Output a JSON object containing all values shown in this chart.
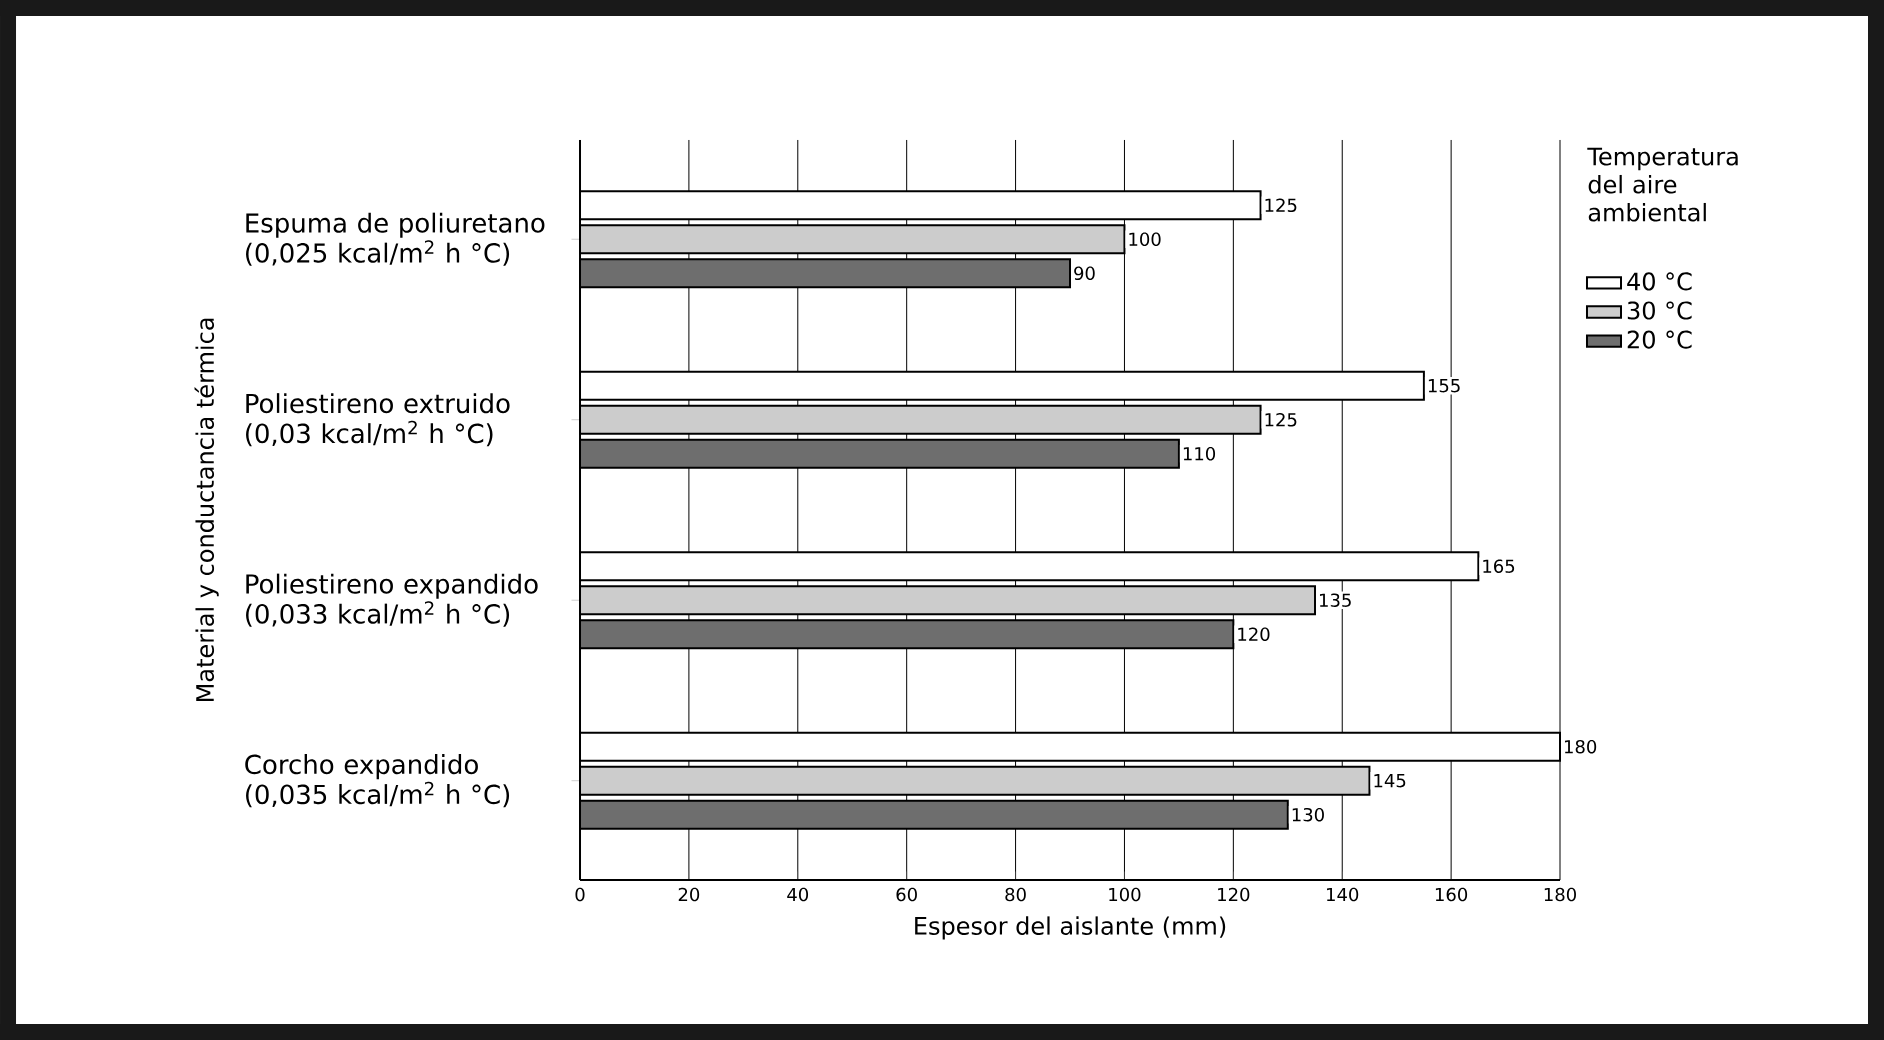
{
  "chart_data": {
    "type": "bar",
    "orientation": "horizontal",
    "xlabel": "Espesor del aislante (mm)",
    "ylabel": "Material y conductancia térmica",
    "legend_title": "Temperatura del aire ambiental",
    "categories": [
      "Espuma de poliuretano (0,025 kcal/m$^{2}$ h °C)",
      "Poliestireno extruido (0,03 kcal/m$^{2}$ h °C)",
      "Poliestireno expandido (0,033 kcal/m$^{2}$ h °C)",
      "Corcho expandido (0,035 kcal/m$^{2}$ h °C)"
    ],
    "series": [
      {
        "name": "40 °C",
        "color": "#ffffff",
        "values": [
          125,
          155,
          165,
          180
        ]
      },
      {
        "name": "30 °C",
        "color": "#cccccc",
        "values": [
          100,
          125,
          135,
          145
        ]
      },
      {
        "name": "20 °C",
        "color": "#6e6e6e",
        "values": [
          90,
          110,
          120,
          130
        ]
      }
    ],
    "xlim": [
      0,
      180
    ],
    "xticks": [
      0,
      20,
      40,
      60,
      80,
      100,
      120,
      140,
      160,
      180
    ],
    "grid": "x",
    "legend": "top right",
    "data_labels": true
  }
}
